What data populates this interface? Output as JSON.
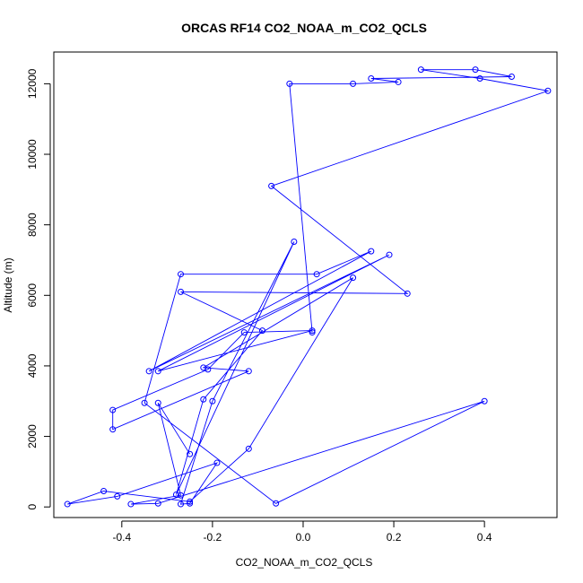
{
  "chart_data": {
    "type": "line",
    "title": "ORCAS RF14 CO2_NOAA_m_CO2_QCLS",
    "xlabel": "CO2_NOAA_m_CO2_QCLS",
    "ylabel": "Altitude (m)",
    "xlim": [
      -0.55,
      0.56
    ],
    "ylim": [
      -300,
      12900
    ],
    "xticks": [
      -0.4,
      -0.2,
      0.0,
      0.2,
      0.4
    ],
    "xtick_labels": [
      "-0.4",
      "-0.2",
      "0.0",
      "0.2",
      "0.4"
    ],
    "yticks": [
      0,
      2000,
      4000,
      6000,
      8000,
      10000,
      12000
    ],
    "ytick_labels": [
      "0",
      "2000",
      "4000",
      "6000",
      "8000",
      "10000",
      "12000"
    ],
    "grid": false,
    "legend": "none",
    "series": [
      {
        "color": "#0000ff",
        "x": [
          0.02,
          -0.03,
          0.11,
          0.21,
          0.15,
          0.46,
          0.38,
          0.26,
          0.39,
          0.54,
          -0.07,
          0.23,
          -0.27,
          -0.09,
          -0.22,
          -0.28,
          -0.02,
          -0.2,
          -0.27,
          -0.25,
          -0.19,
          -0.41,
          -0.52,
          -0.44,
          -0.25,
          -0.12,
          0.11,
          -0.22,
          -0.12,
          -0.42,
          -0.42,
          -0.21,
          -0.13,
          0.02,
          -0.32,
          0.19,
          -0.34,
          0.15,
          0.03,
          -0.27,
          -0.35,
          -0.06,
          0.4,
          -0.32,
          -0.38,
          -0.27,
          -0.32,
          -0.25
        ],
        "y": [
          4950,
          12000,
          12000,
          12050,
          12150,
          12200,
          12400,
          12400,
          12150,
          11800,
          9100,
          6050,
          6100,
          5000,
          3050,
          350,
          7520,
          3000,
          80,
          100,
          1250,
          300,
          80,
          450,
          150,
          1650,
          6500,
          3950,
          3850,
          2200,
          2750,
          3900,
          4950,
          5000,
          3850,
          7150,
          3850,
          7250,
          6600,
          6600,
          2950,
          100,
          3000,
          100,
          80,
          330,
          2950,
          1500
        ]
      }
    ]
  }
}
